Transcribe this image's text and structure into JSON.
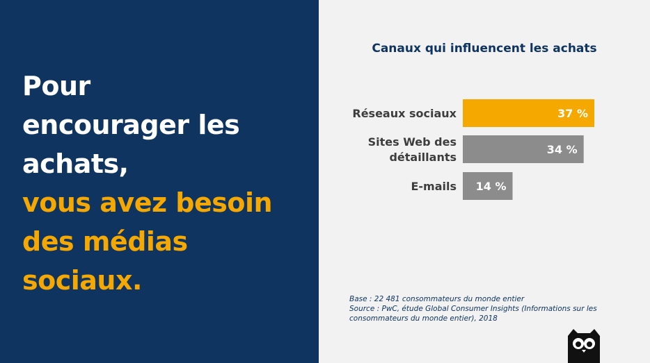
{
  "headline": {
    "line1": "Pour",
    "line2": "encourager les",
    "line3": "achats,",
    "line4": "vous avez besoin",
    "line5": "des médias",
    "line6": "sociaux."
  },
  "chart_data": {
    "type": "bar",
    "orientation": "horizontal",
    "title": "Canaux qui influencent les achats",
    "categories": [
      [
        "Réseaux sociaux"
      ],
      [
        "Sites Web des",
        "détaillants"
      ],
      [
        "E-mails"
      ]
    ],
    "values": [
      37,
      34,
      14
    ],
    "value_labels": [
      "37 %",
      "34 %",
      "14 %"
    ],
    "xlim": [
      0,
      37
    ],
    "grid": false,
    "colors": [
      "#f5a800",
      "#8c8c8c",
      "#8c8c8c"
    ]
  },
  "footnote": {
    "base": "Base : 22 481 consommateurs du monde entier",
    "source_line1": "Source : PwC, étude Global Consumer Insights (Informations sur les",
    "source_line2": "consommateurs du monde entier), 2018"
  },
  "colors": {
    "navy": "#0f3460",
    "accent": "#f5a800",
    "gray_bar": "#8c8c8c",
    "panel_bg": "#f2f2f2"
  },
  "logo": {
    "icon": "owl-logo-icon"
  }
}
